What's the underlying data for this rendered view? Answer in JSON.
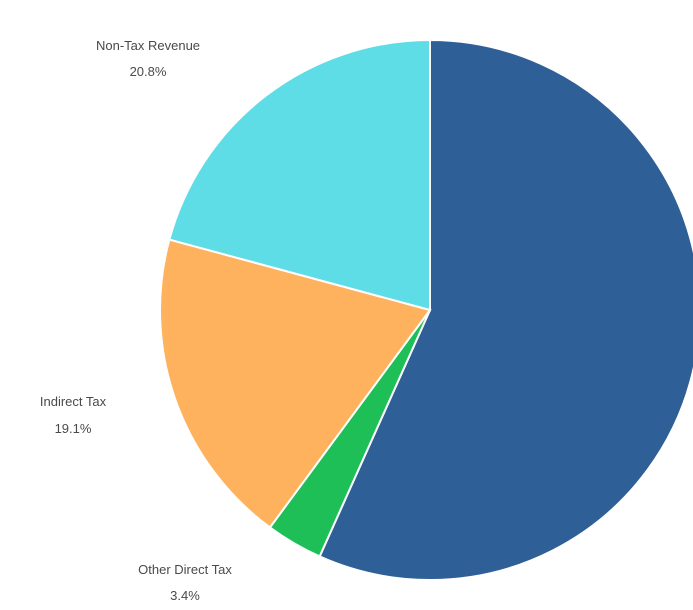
{
  "chart_data": {
    "type": "pie",
    "title": "",
    "slices": [
      {
        "label": "",
        "percent_text": "",
        "value": 56.7,
        "color": "#2f5f97"
      },
      {
        "label": "Other Direct Tax",
        "percent_text": "3.4%",
        "value": 3.4,
        "color": "#1fbf58"
      },
      {
        "label": "Indirect Tax",
        "percent_text": "19.1%",
        "value": 19.1,
        "color": "#ffb25e"
      },
      {
        "label": "Non-Tax Revenue",
        "percent_text": "20.8%",
        "value": 20.8,
        "color": "#5fdde6"
      }
    ],
    "start_angle_deg": 0,
    "direction": "clockwise",
    "legend": "none"
  }
}
